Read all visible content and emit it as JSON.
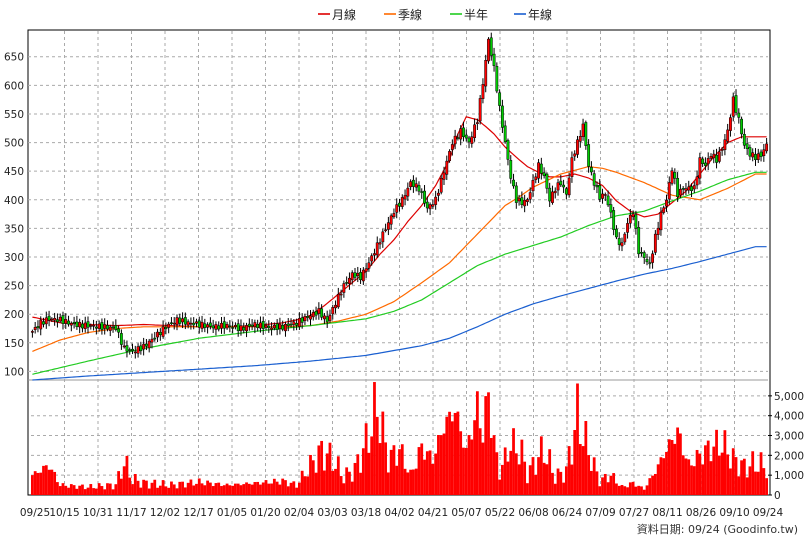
{
  "chart_data": {
    "type": "candlestick",
    "legend": {
      "placement": "top-center",
      "items": [
        {
          "name": "月線",
          "color": "#dd0000"
        },
        {
          "name": "季線",
          "color": "#ff6a00"
        },
        {
          "name": "半年",
          "color": "#22cc22"
        },
        {
          "name": "年線",
          "color": "#1a5fd0"
        }
      ]
    },
    "price_axis": {
      "ticks": [
        100,
        150,
        200,
        250,
        300,
        350,
        400,
        450,
        500,
        550,
        600,
        650
      ],
      "range": [
        85,
        695
      ],
      "grid": true
    },
    "volume_axis": {
      "ticks": [
        "0",
        "1,000",
        "2,000",
        "3,000",
        "4,000",
        "5,000"
      ],
      "tick_values": [
        0,
        1000,
        2000,
        3000,
        4000,
        5000
      ],
      "range": [
        0,
        5800
      ]
    },
    "x_ticks": [
      "09/25",
      "10/15",
      "10/31",
      "11/17",
      "12/02",
      "12/17",
      "01/05",
      "01/20",
      "02/04",
      "03/03",
      "03/18",
      "04/02",
      "04/21",
      "05/07",
      "05/22",
      "06/08",
      "06/24",
      "07/09",
      "07/27",
      "08/11",
      "08/26",
      "09/10",
      "09/24"
    ],
    "series": [
      {
        "name": "月線",
        "color": "#dd0000",
        "points": [
          [
            0,
            195
          ],
          [
            10,
            185
          ],
          [
            20,
            182
          ],
          [
            30,
            180
          ],
          [
            40,
            182
          ],
          [
            50,
            180
          ],
          [
            60,
            178
          ],
          [
            70,
            178
          ],
          [
            80,
            180
          ],
          [
            90,
            185
          ],
          [
            95,
            190
          ],
          [
            100,
            198
          ],
          [
            105,
            215
          ],
          [
            110,
            235
          ],
          [
            115,
            255
          ],
          [
            120,
            275
          ],
          [
            125,
            305
          ],
          [
            130,
            330
          ],
          [
            135,
            362
          ],
          [
            140,
            390
          ],
          [
            145,
            425
          ],
          [
            150,
            470
          ],
          [
            153,
            515
          ],
          [
            156,
            545
          ],
          [
            160,
            540
          ],
          [
            163,
            528
          ],
          [
            166,
            515
          ],
          [
            170,
            492
          ],
          [
            175,
            470
          ],
          [
            178,
            458
          ],
          [
            182,
            448
          ],
          [
            186,
            440
          ],
          [
            190,
            440
          ],
          [
            195,
            445
          ],
          [
            200,
            438
          ],
          [
            205,
            425
          ],
          [
            210,
            398
          ],
          [
            215,
            380
          ],
          [
            220,
            370
          ],
          [
            225,
            375
          ],
          [
            230,
            395
          ],
          [
            235,
            415
          ],
          [
            240,
            445
          ],
          [
            245,
            475
          ],
          [
            250,
            500
          ],
          [
            255,
            510
          ],
          [
            260,
            510
          ]
        ]
      },
      {
        "name": "季線",
        "color": "#ff6a00",
        "points": [
          [
            0,
            135
          ],
          [
            10,
            155
          ],
          [
            20,
            168
          ],
          [
            30,
            175
          ],
          [
            40,
            178
          ],
          [
            60,
            178
          ],
          [
            80,
            178
          ],
          [
            90,
            178
          ],
          [
            100,
            180
          ],
          [
            110,
            188
          ],
          [
            120,
            200
          ],
          [
            130,
            222
          ],
          [
            140,
            255
          ],
          [
            150,
            290
          ],
          [
            158,
            330
          ],
          [
            165,
            365
          ],
          [
            170,
            390
          ],
          [
            175,
            405
          ],
          [
            180,
            422
          ],
          [
            190,
            445
          ],
          [
            200,
            458
          ],
          [
            205,
            455
          ],
          [
            210,
            448
          ],
          [
            220,
            430
          ],
          [
            230,
            408
          ],
          [
            240,
            400
          ],
          [
            250,
            420
          ],
          [
            260,
            445
          ]
        ]
      },
      {
        "name": "半年",
        "color": "#22cc22",
        "points": [
          [
            0,
            95
          ],
          [
            20,
            118
          ],
          [
            40,
            140
          ],
          [
            60,
            158
          ],
          [
            80,
            170
          ],
          [
            100,
            180
          ],
          [
            120,
            192
          ],
          [
            130,
            205
          ],
          [
            140,
            225
          ],
          [
            150,
            255
          ],
          [
            160,
            285
          ],
          [
            170,
            305
          ],
          [
            180,
            320
          ],
          [
            190,
            335
          ],
          [
            200,
            355
          ],
          [
            210,
            372
          ],
          [
            220,
            380
          ],
          [
            230,
            398
          ],
          [
            240,
            415
          ],
          [
            250,
            435
          ],
          [
            260,
            448
          ]
        ]
      },
      {
        "name": "年線",
        "color": "#1a5fd0",
        "points": [
          [
            0,
            85
          ],
          [
            20,
            92
          ],
          [
            40,
            98
          ],
          [
            60,
            104
          ],
          [
            80,
            110
          ],
          [
            100,
            118
          ],
          [
            120,
            128
          ],
          [
            140,
            145
          ],
          [
            150,
            158
          ],
          [
            160,
            178
          ],
          [
            170,
            200
          ],
          [
            180,
            218
          ],
          [
            190,
            232
          ],
          [
            200,
            245
          ],
          [
            210,
            258
          ],
          [
            220,
            270
          ],
          [
            230,
            280
          ],
          [
            240,
            292
          ],
          [
            250,
            305
          ],
          [
            260,
            318
          ]
        ]
      }
    ],
    "price_path": [
      [
        0,
        170
      ],
      [
        3,
        185
      ],
      [
        6,
        192
      ],
      [
        10,
        190
      ],
      [
        15,
        182
      ],
      [
        20,
        180
      ],
      [
        25,
        178
      ],
      [
        30,
        176
      ],
      [
        33,
        140
      ],
      [
        36,
        135
      ],
      [
        40,
        143
      ],
      [
        44,
        160
      ],
      [
        48,
        178
      ],
      [
        52,
        190
      ],
      [
        56,
        185
      ],
      [
        60,
        182
      ],
      [
        65,
        178
      ],
      [
        70,
        180
      ],
      [
        75,
        175
      ],
      [
        80,
        182
      ],
      [
        85,
        177
      ],
      [
        90,
        178
      ],
      [
        95,
        185
      ],
      [
        100,
        198
      ],
      [
        103,
        205
      ],
      [
        106,
        188
      ],
      [
        109,
        220
      ],
      [
        112,
        250
      ],
      [
        115,
        270
      ],
      [
        118,
        265
      ],
      [
        121,
        290
      ],
      [
        124,
        320
      ],
      [
        127,
        350
      ],
      [
        130,
        380
      ],
      [
        133,
        400
      ],
      [
        136,
        430
      ],
      [
        139,
        420
      ],
      [
        142,
        385
      ],
      [
        145,
        400
      ],
      [
        148,
        450
      ],
      [
        151,
        500
      ],
      [
        154,
        520
      ],
      [
        157,
        500
      ],
      [
        160,
        540
      ],
      [
        162,
        605
      ],
      [
        164,
        680
      ],
      [
        166,
        630
      ],
      [
        168,
        560
      ],
      [
        170,
        500
      ],
      [
        172,
        440
      ],
      [
        174,
        400
      ],
      [
        176,
        395
      ],
      [
        178,
        400
      ],
      [
        180,
        430
      ],
      [
        182,
        460
      ],
      [
        184,
        440
      ],
      [
        186,
        400
      ],
      [
        188,
        420
      ],
      [
        190,
        430
      ],
      [
        192,
        410
      ],
      [
        194,
        470
      ],
      [
        196,
        500
      ],
      [
        198,
        530
      ],
      [
        200,
        460
      ],
      [
        202,
        430
      ],
      [
        204,
        405
      ],
      [
        206,
        410
      ],
      [
        208,
        375
      ],
      [
        210,
        330
      ],
      [
        212,
        322
      ],
      [
        214,
        360
      ],
      [
        216,
        380
      ],
      [
        218,
        310
      ],
      [
        220,
        300
      ],
      [
        222,
        285
      ],
      [
        224,
        335
      ],
      [
        226,
        375
      ],
      [
        228,
        400
      ],
      [
        230,
        455
      ],
      [
        232,
        410
      ],
      [
        234,
        420
      ],
      [
        236,
        420
      ],
      [
        238,
        420
      ],
      [
        240,
        470
      ],
      [
        242,
        460
      ],
      [
        244,
        480
      ],
      [
        246,
        470
      ],
      [
        248,
        490
      ],
      [
        250,
        520
      ],
      [
        252,
        575
      ],
      [
        254,
        540
      ],
      [
        256,
        495
      ],
      [
        258,
        480
      ],
      [
        260,
        475
      ],
      [
        262,
        478
      ],
      [
        264,
        496
      ]
    ],
    "volume_path": [
      [
        0,
        1000
      ],
      [
        6,
        1500
      ],
      [
        10,
        500
      ],
      [
        20,
        400
      ],
      [
        30,
        500
      ],
      [
        33,
        1650
      ],
      [
        36,
        800
      ],
      [
        40,
        600
      ],
      [
        50,
        500
      ],
      [
        60,
        650
      ],
      [
        70,
        500
      ],
      [
        80,
        600
      ],
      [
        90,
        700
      ],
      [
        95,
        500
      ],
      [
        100,
        1500
      ],
      [
        104,
        2200
      ],
      [
        108,
        1800
      ],
      [
        112,
        900
      ],
      [
        116,
        1300
      ],
      [
        120,
        2600
      ],
      [
        124,
        4500
      ],
      [
        128,
        1800
      ],
      [
        132,
        2300
      ],
      [
        136,
        1000
      ],
      [
        140,
        2400
      ],
      [
        144,
        1800
      ],
      [
        148,
        3500
      ],
      [
        152,
        4300
      ],
      [
        156,
        2200
      ],
      [
        160,
        4400
      ],
      [
        162,
        3100
      ],
      [
        164,
        5100
      ],
      [
        166,
        2600
      ],
      [
        168,
        1100
      ],
      [
        172,
        2600
      ],
      [
        176,
        2100
      ],
      [
        178,
        1000
      ],
      [
        180,
        1500
      ],
      [
        184,
        2300
      ],
      [
        188,
        900
      ],
      [
        192,
        1200
      ],
      [
        196,
        4000
      ],
      [
        200,
        2200
      ],
      [
        204,
        700
      ],
      [
        208,
        1000
      ],
      [
        212,
        400
      ],
      [
        216,
        600
      ],
      [
        220,
        300
      ],
      [
        224,
        1200
      ],
      [
        228,
        2300
      ],
      [
        232,
        3200
      ],
      [
        236,
        1500
      ],
      [
        240,
        2000
      ],
      [
        244,
        2400
      ],
      [
        248,
        2600
      ],
      [
        252,
        1800
      ],
      [
        256,
        1400
      ],
      [
        260,
        1600
      ],
      [
        264,
        1400
      ]
    ],
    "footer": "資料日期: 09/24",
    "source": "(Goodinfo.tw)"
  }
}
